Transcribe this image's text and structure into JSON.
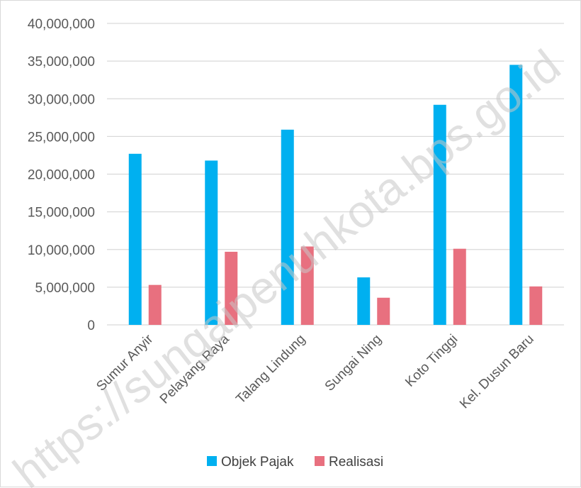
{
  "chart_data": {
    "type": "bar",
    "title": "",
    "xlabel": "",
    "ylabel": "",
    "categories": [
      "Sumur Anyir",
      "Pelayang Raya",
      "Talang Lindung",
      "Sungai Ning",
      "Koto Tinggi",
      "Kel. Dusun Baru"
    ],
    "series": [
      {
        "name": "Objek Pajak",
        "color": "#00b0f0",
        "values": [
          22700000,
          21800000,
          25900000,
          6300000,
          29200000,
          34500000
        ]
      },
      {
        "name": "Realisasi",
        "color": "#e8707f",
        "values": [
          5300000,
          9700000,
          10400000,
          3600000,
          10100000,
          5100000
        ]
      }
    ],
    "ylim": [
      0,
      40000000
    ],
    "yticks": [
      "0",
      "5,000,000",
      "10,000,000",
      "15,000,000",
      "20,000,000",
      "25,000,000",
      "30,000,000",
      "35,000,000",
      "40,000,000"
    ],
    "grid": true,
    "legend_position": "bottom"
  },
  "watermark": "https://sungaipenuhkota.bps.go.id",
  "colors": {
    "gridline": "#d9d9d9",
    "text": "#595959"
  }
}
